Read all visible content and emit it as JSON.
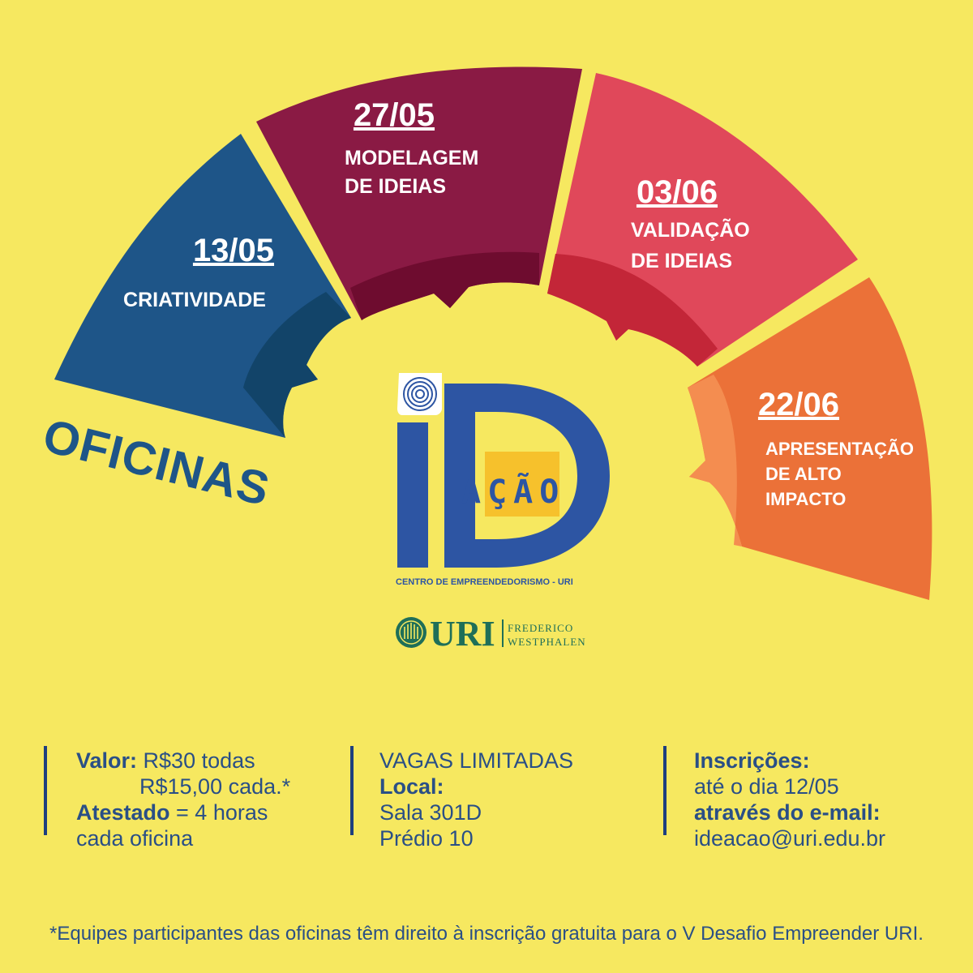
{
  "heading": "OFICINAS",
  "workshops": [
    {
      "date": "13/05",
      "title_lines": [
        "CRIATIVIDADE"
      ],
      "color": "#1E5588"
    },
    {
      "date": "27/05",
      "title_lines": [
        "MODELAGEM",
        "DE IDEIAS"
      ],
      "color": "#8A1A44"
    },
    {
      "date": "03/06",
      "title_lines": [
        "VALIDAÇÃO",
        "DE IDEIAS"
      ],
      "color": "#E0485A"
    },
    {
      "date": "22/06",
      "title_lines": [
        "APRESENTAÇÃO",
        "DE ALTO",
        "IMPACTO"
      ],
      "color": "#EB7138"
    }
  ],
  "logo": {
    "letter_i": "i",
    "letter_d": "D",
    "word": "AÇÃO",
    "subtitle": "CENTRO DE EMPREENDEDORISMO - URI",
    "colors": {
      "blue": "#2D55A3",
      "yellow": "#F6C12C"
    }
  },
  "uri_logo": {
    "name": "URI",
    "campus_lines": [
      "FREDERICO",
      "WESTPHALEN"
    ],
    "color": "#1F6F58"
  },
  "info": {
    "price_label": "Valor:",
    "price_all": "R$30 todas",
    "price_each": "R$15,00 cada.*",
    "certificate_label": "Atestado",
    "certificate_value": "= 4 horas",
    "certificate_unit": "cada oficina",
    "vacancies": "VAGAS LIMITADAS",
    "location_label": "Local:",
    "room": "Sala 301D",
    "building": "Prédio 10",
    "registration_label": "Inscrições:",
    "registration_deadline": "até o dia 12/05",
    "email_label": "através do e-mail:",
    "email": "ideacao@uri.edu.br"
  },
  "footnote": "*Equipes participantes das oficinas têm direito à inscrição gratuita para o V Desafio Empreender URI."
}
